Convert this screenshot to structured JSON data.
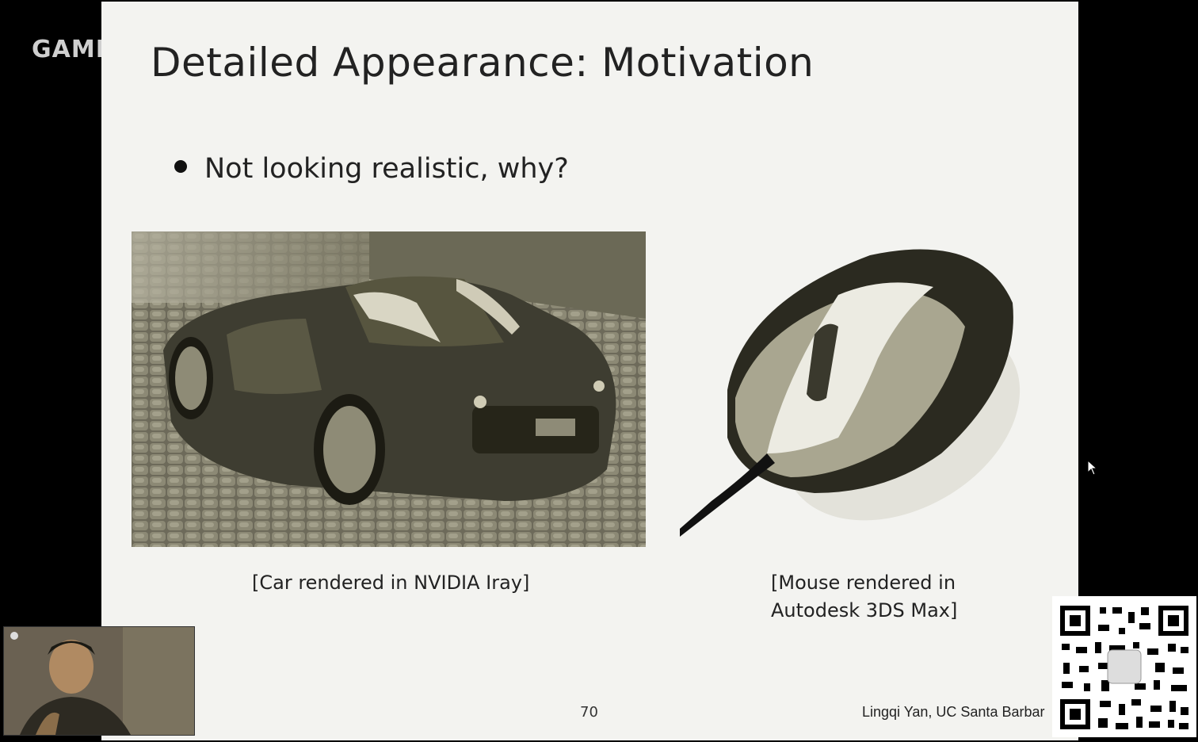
{
  "overlay": {
    "logo_text": "GAME"
  },
  "slide": {
    "title": "Detailed Appearance: Motivation",
    "bullet": "Not looking realistic, why?",
    "car_caption": "[Car rendered in NVIDIA Iray]",
    "mouse_caption_line1": "[Mouse rendered in",
    "mouse_caption_line2": "Autodesk 3DS Max]",
    "page_number": "70",
    "author": "Lingqi Yan, UC Santa Barbar"
  }
}
